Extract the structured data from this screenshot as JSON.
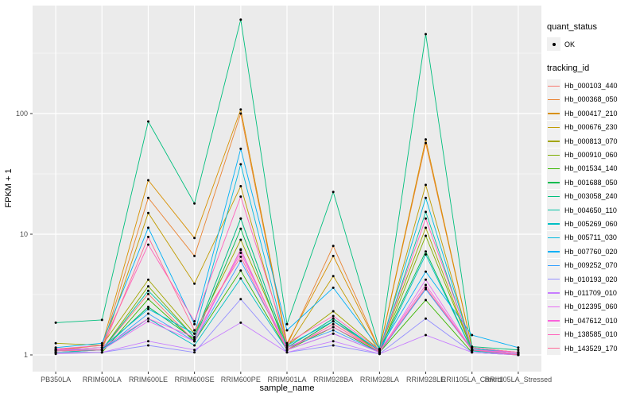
{
  "chart_data": {
    "type": "line",
    "xlabel": "sample_name",
    "ylabel": "FPKM + 1",
    "yscale": "log10",
    "ylim": [
      1,
      600
    ],
    "yticks": [
      1,
      10,
      100
    ],
    "grid": "on",
    "legend_position": "right",
    "panel_color": "#EBEBEB",
    "grid_color": "#FFFFFF",
    "point_color": "#000000",
    "categories": [
      "PB350LA",
      "RRIM600LA",
      "RRIM600LE",
      "RRIM600SE",
      "RRIM600PE",
      "RRIM901LA",
      "RRIM928BA",
      "RRIM928LA",
      "RRIM928LE",
      "RRII105LA_Control",
      "RRII105LA_Stressed"
    ],
    "series": [
      {
        "name": "Hb_000103_440",
        "color": "#F8766D",
        "values": [
          1.05,
          1.1,
          3.2,
          1.3,
          7.5,
          1.1,
          1.9,
          1.05,
          3.6,
          1.1,
          1.0
        ]
      },
      {
        "name": "Hb_000368_050",
        "color": "#EA8331",
        "values": [
          1.1,
          1.15,
          20,
          6.6,
          100,
          1.2,
          8.0,
          1.1,
          57,
          1.15,
          1.05
        ]
      },
      {
        "name": "Hb_000417_210",
        "color": "#D89000",
        "values": [
          1.1,
          1.2,
          28,
          9.3,
          108,
          1.25,
          6.6,
          1.1,
          61,
          1.15,
          1.05
        ]
      },
      {
        "name": "Hb_000676_230",
        "color": "#C09B00",
        "values": [
          1.05,
          1.1,
          15,
          3.9,
          25,
          1.15,
          4.5,
          1.05,
          25.6,
          1.1,
          1.0
        ]
      },
      {
        "name": "Hb_000813_070",
        "color": "#A3A500",
        "values": [
          1.25,
          1.2,
          4.2,
          1.5,
          9.0,
          1.2,
          2.3,
          1.1,
          11.3,
          1.1,
          1.05
        ]
      },
      {
        "name": "Hb_000910_060",
        "color": "#7CAE00",
        "values": [
          1.1,
          1.1,
          3.7,
          1.4,
          13.5,
          1.15,
          2.0,
          1.05,
          9.7,
          1.1,
          1.0
        ]
      },
      {
        "name": "Hb_001534_140",
        "color": "#39B600",
        "values": [
          1.05,
          1.05,
          2.9,
          1.3,
          5.0,
          1.1,
          1.7,
          1.05,
          2.85,
          1.05,
          1.0
        ]
      },
      {
        "name": "Hb_001688_050",
        "color": "#00BB4E",
        "values": [
          1.1,
          1.1,
          2.5,
          1.35,
          11.1,
          1.1,
          1.9,
          1.1,
          7.2,
          1.08,
          1.02
        ]
      },
      {
        "name": "Hb_003058_240",
        "color": "#00BF7D",
        "values": [
          1.85,
          1.95,
          86,
          18,
          600,
          1.8,
          22.4,
          1.12,
          455,
          1.17,
          1.1
        ]
      },
      {
        "name": "Hb_004650_110",
        "color": "#00C1A3",
        "values": [
          1.1,
          1.1,
          3.4,
          1.4,
          13.5,
          1.15,
          2.0,
          1.08,
          15.3,
          1.1,
          1.02
        ]
      },
      {
        "name": "Hb_005269_060",
        "color": "#00BFC4",
        "values": [
          1.05,
          1.1,
          2.0,
          1.2,
          4.3,
          1.1,
          1.5,
          1.05,
          6.8,
          1.08,
          1.0
        ]
      },
      {
        "name": "Hb_005711_030",
        "color": "#00BAE0",
        "values": [
          1.1,
          1.15,
          2.4,
          1.5,
          38,
          1.2,
          1.9,
          1.1,
          20,
          1.12,
          1.05
        ]
      },
      {
        "name": "Hb_007760_020",
        "color": "#00B0F6",
        "values": [
          1.15,
          1.25,
          11.3,
          1.8,
          51,
          1.6,
          3.6,
          1.12,
          4.9,
          1.46,
          1.15
        ]
      },
      {
        "name": "Hb_009252_070",
        "color": "#35A2FF",
        "values": [
          1.1,
          1.1,
          2.2,
          1.3,
          6.0,
          1.15,
          1.6,
          1.05,
          3.5,
          1.1,
          1.0
        ]
      },
      {
        "name": "Hb_010193_020",
        "color": "#9590FF",
        "values": [
          1.05,
          1.05,
          1.2,
          1.05,
          2.9,
          1.05,
          1.2,
          1.02,
          2.0,
          1.05,
          1.0
        ]
      },
      {
        "name": "Hb_011709_010",
        "color": "#C77CFF",
        "values": [
          1.02,
          1.05,
          1.3,
          1.1,
          1.85,
          1.05,
          1.3,
          1.02,
          1.46,
          1.05,
          1.0
        ]
      },
      {
        "name": "Hb_012395_060",
        "color": "#E76BF3",
        "values": [
          1.1,
          1.1,
          1.9,
          1.3,
          7.4,
          1.1,
          1.5,
          1.05,
          4.2,
          1.1,
          1.02
        ]
      },
      {
        "name": "Hb_047612_010",
        "color": "#FA62DB",
        "values": [
          1.1,
          1.15,
          2.0,
          1.4,
          7.0,
          1.15,
          1.7,
          1.08,
          3.8,
          1.1,
          1.05
        ]
      },
      {
        "name": "Hb_138585_010",
        "color": "#FF62BC",
        "values": [
          1.12,
          1.2,
          8.2,
          1.9,
          20.5,
          1.25,
          2.1,
          1.1,
          13.5,
          1.15,
          1.05
        ]
      },
      {
        "name": "Hb_143529_170",
        "color": "#FF6A98",
        "values": [
          1.08,
          1.1,
          9.5,
          1.6,
          6.5,
          1.1,
          1.8,
          1.06,
          3.6,
          1.1,
          1.0
        ]
      }
    ]
  },
  "legend": {
    "quant_status_title": "quant_status",
    "quant_status_items": [
      {
        "label": "OK"
      }
    ],
    "tracking_title": "tracking_id"
  }
}
